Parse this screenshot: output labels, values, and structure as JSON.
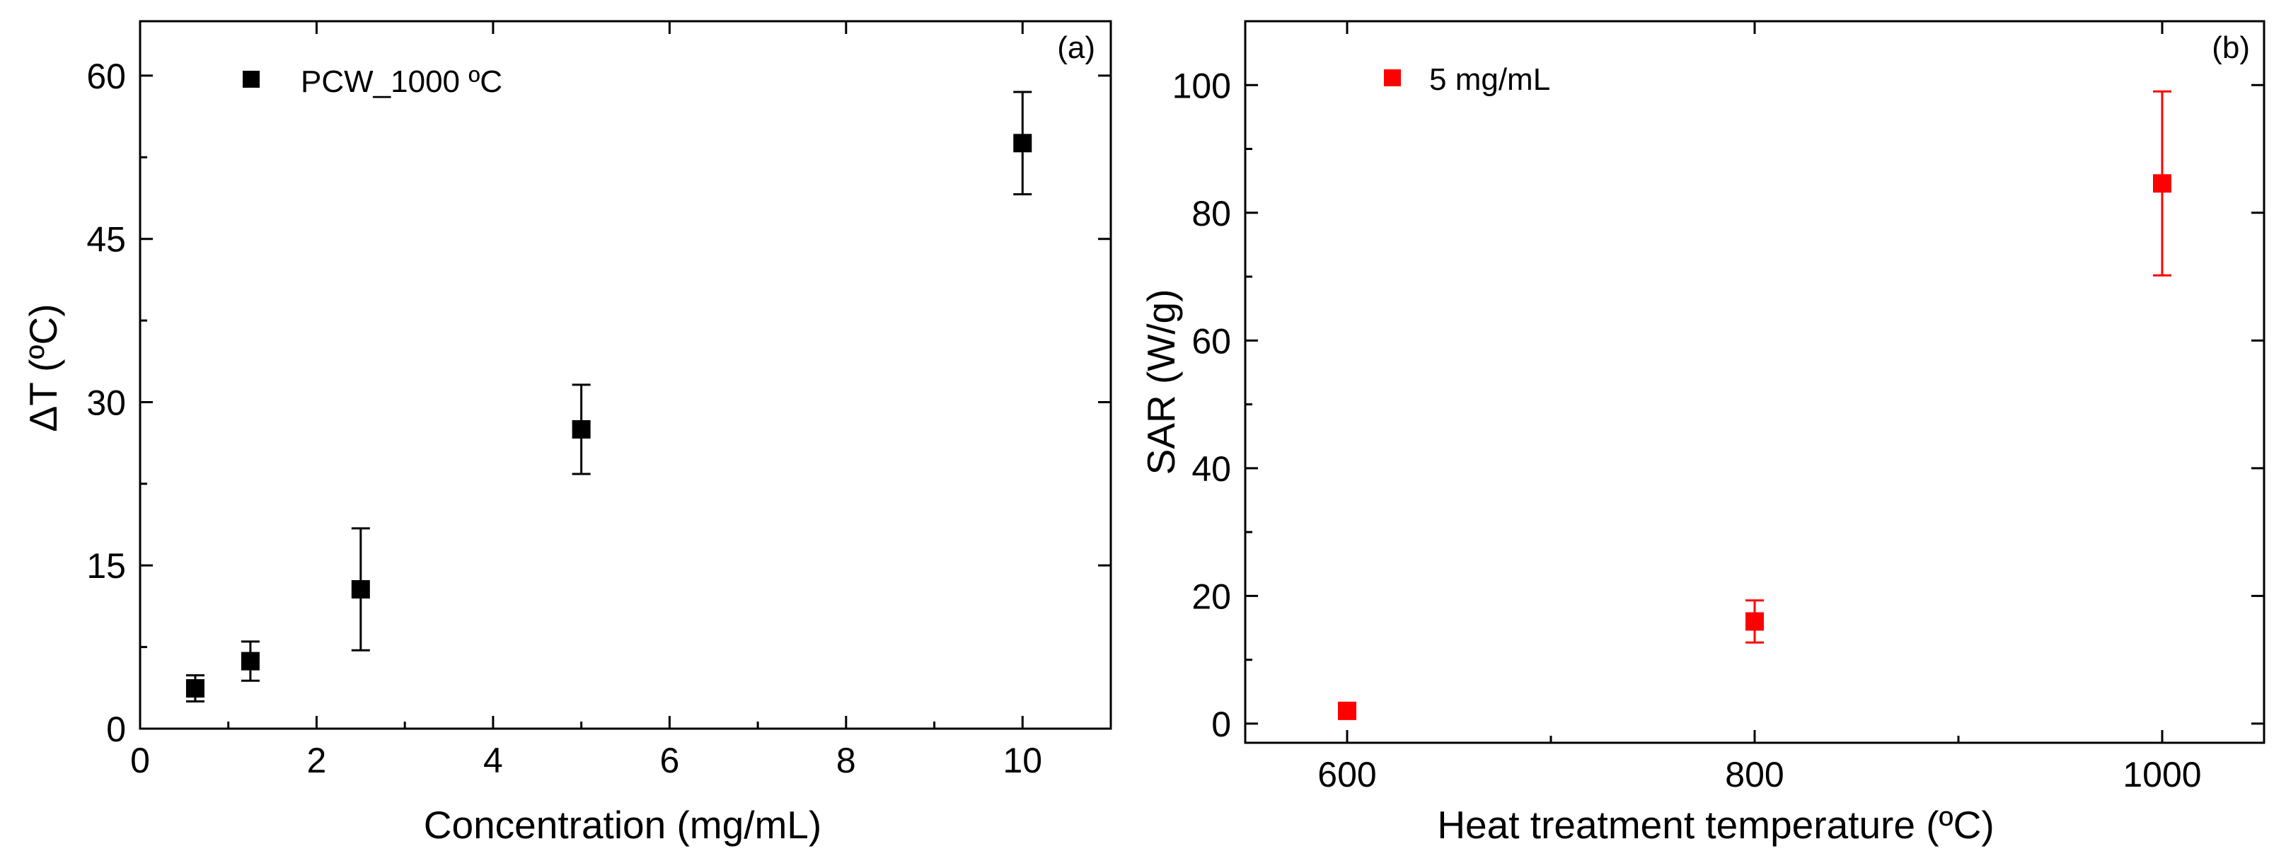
{
  "chart_data": [
    {
      "panel": "(a)",
      "type": "scatter",
      "xlabel": "Concentration (mg/mL)",
      "ylabel": "ΔT (ºC)",
      "xlim": [
        0,
        11
      ],
      "ylim": [
        0,
        65
      ],
      "xticks": [
        0,
        2,
        4,
        6,
        8,
        10
      ],
      "xtick_labels": [
        "0",
        "2",
        "4",
        "6",
        "8",
        "10"
      ],
      "yticks": [
        0,
        15,
        30,
        45,
        60
      ],
      "ytick_labels": [
        "0",
        "15",
        "30",
        "45",
        "60"
      ],
      "grid": false,
      "legend_position": "top-left",
      "series": [
        {
          "name": "PCW_1000 ºC",
          "color": "#000000",
          "marker": "square",
          "x": [
            0.625,
            1.25,
            2.5,
            5,
            10
          ],
          "y": [
            3.7,
            6.2,
            12.8,
            27.5,
            53.8
          ],
          "yerr": [
            1.2,
            1.8,
            5.6,
            4.1,
            4.7
          ]
        }
      ]
    },
    {
      "panel": "(b)",
      "type": "scatter",
      "xlabel": "Heat treatment temperature (ºC)",
      "ylabel": "SAR (W/g)",
      "xlim": [
        550,
        1050
      ],
      "ylim": [
        -3,
        110
      ],
      "xticks": [
        600,
        800,
        1000
      ],
      "xtick_labels": [
        "600",
        "800",
        "1000"
      ],
      "yticks": [
        0,
        20,
        40,
        60,
        80,
        100
      ],
      "ytick_labels": [
        "0",
        "20",
        "40",
        "60",
        "80",
        "100"
      ],
      "grid": false,
      "legend_position": "top-left",
      "series": [
        {
          "name": "5 mg/mL",
          "color": "#ff0000",
          "marker": "square",
          "x": [
            600,
            800,
            1000
          ],
          "y": [
            2,
            16,
            84.6
          ],
          "yerr": [
            0.8,
            3.3,
            14.4
          ]
        }
      ]
    }
  ]
}
